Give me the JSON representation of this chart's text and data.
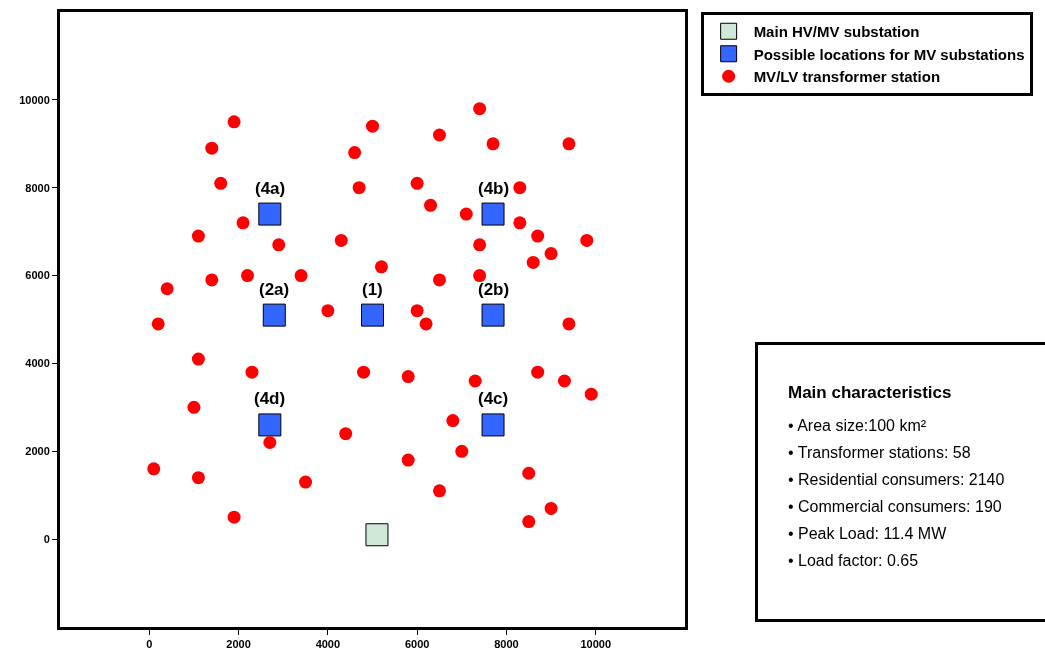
{
  "chart_data": {
    "type": "scatter",
    "xlim": [
      -2000,
      12000
    ],
    "ylim": [
      -2000,
      12000
    ],
    "xticks": [
      0,
      2000,
      4000,
      6000,
      8000,
      10000
    ],
    "yticks": [
      0,
      2000,
      4000,
      6000,
      8000,
      10000
    ],
    "grid": false,
    "legend": "right",
    "series": [
      {
        "name": "Main HV/MV substation",
        "color": "#cfe8d8",
        "marker": "square",
        "x": [
          5100
        ],
        "values": [
          100
        ]
      },
      {
        "name": "Possible locations for MV substations",
        "color": "#3366ff",
        "marker": "square",
        "x": [
          2700,
          7700,
          2800,
          5000,
          7700,
          2700,
          7700
        ],
        "values": [
          7400,
          7400,
          5100,
          5100,
          5100,
          2600,
          2600
        ]
      },
      {
        "name": "MV/LV transformer station",
        "color": "#ff0000",
        "marker": "circle",
        "x": [
          1900,
          1400,
          1600,
          2100,
          1100,
          2900,
          2200,
          1400,
          3400,
          400,
          200,
          1100,
          2300,
          1000,
          2700,
          100,
          1100,
          1900,
          3500,
          4000,
          4300,
          4600,
          5000,
          4700,
          5200,
          4800,
          4400,
          5800,
          6000,
          6300,
          6500,
          6000,
          6200,
          6500,
          7100,
          7400,
          7700,
          7400,
          7400,
          8300,
          8300,
          9400,
          8700,
          9000,
          8600,
          9800,
          9400,
          7300,
          8700,
          9300,
          9900,
          6800,
          7000,
          5800,
          6500,
          8500,
          9000,
          8500
        ],
        "values": [
          9500,
          8900,
          8100,
          7200,
          6900,
          6700,
          6000,
          5900,
          6000,
          5700,
          4900,
          4100,
          3800,
          3000,
          2200,
          1600,
          1400,
          500,
          1300,
          5200,
          6800,
          8800,
          9400,
          8000,
          6200,
          3800,
          2400,
          3700,
          8100,
          7600,
          9200,
          5200,
          4900,
          5900,
          7400,
          9800,
          9000,
          6700,
          6000,
          8000,
          7200,
          9000,
          6900,
          6500,
          6300,
          6800,
          4900,
          3600,
          3800,
          3600,
          3300,
          2700,
          2000,
          1800,
          1100,
          1500,
          700,
          400
        ]
      }
    ],
    "annotations": [
      {
        "text": "(4a)",
        "x": 2700,
        "y": 7400
      },
      {
        "text": "(4b)",
        "x": 7700,
        "y": 7400
      },
      {
        "text": "(2a)",
        "x": 2800,
        "y": 5100
      },
      {
        "text": "(1)",
        "x": 5000,
        "y": 5100
      },
      {
        "text": "(2b)",
        "x": 7700,
        "y": 5100
      },
      {
        "text": "(4d)",
        "x": 2700,
        "y": 2600
      },
      {
        "text": "(4c)",
        "x": 7700,
        "y": 2600
      },
      "Main characteristics",
      "• Area size:100 km²",
      "• Transformer stations: 58",
      "• Residential consumers: 2140",
      "• Commercial consumers: 190",
      "• Peak Load: 11.4 MW",
      "• Load factor: 0.65"
    ]
  }
}
